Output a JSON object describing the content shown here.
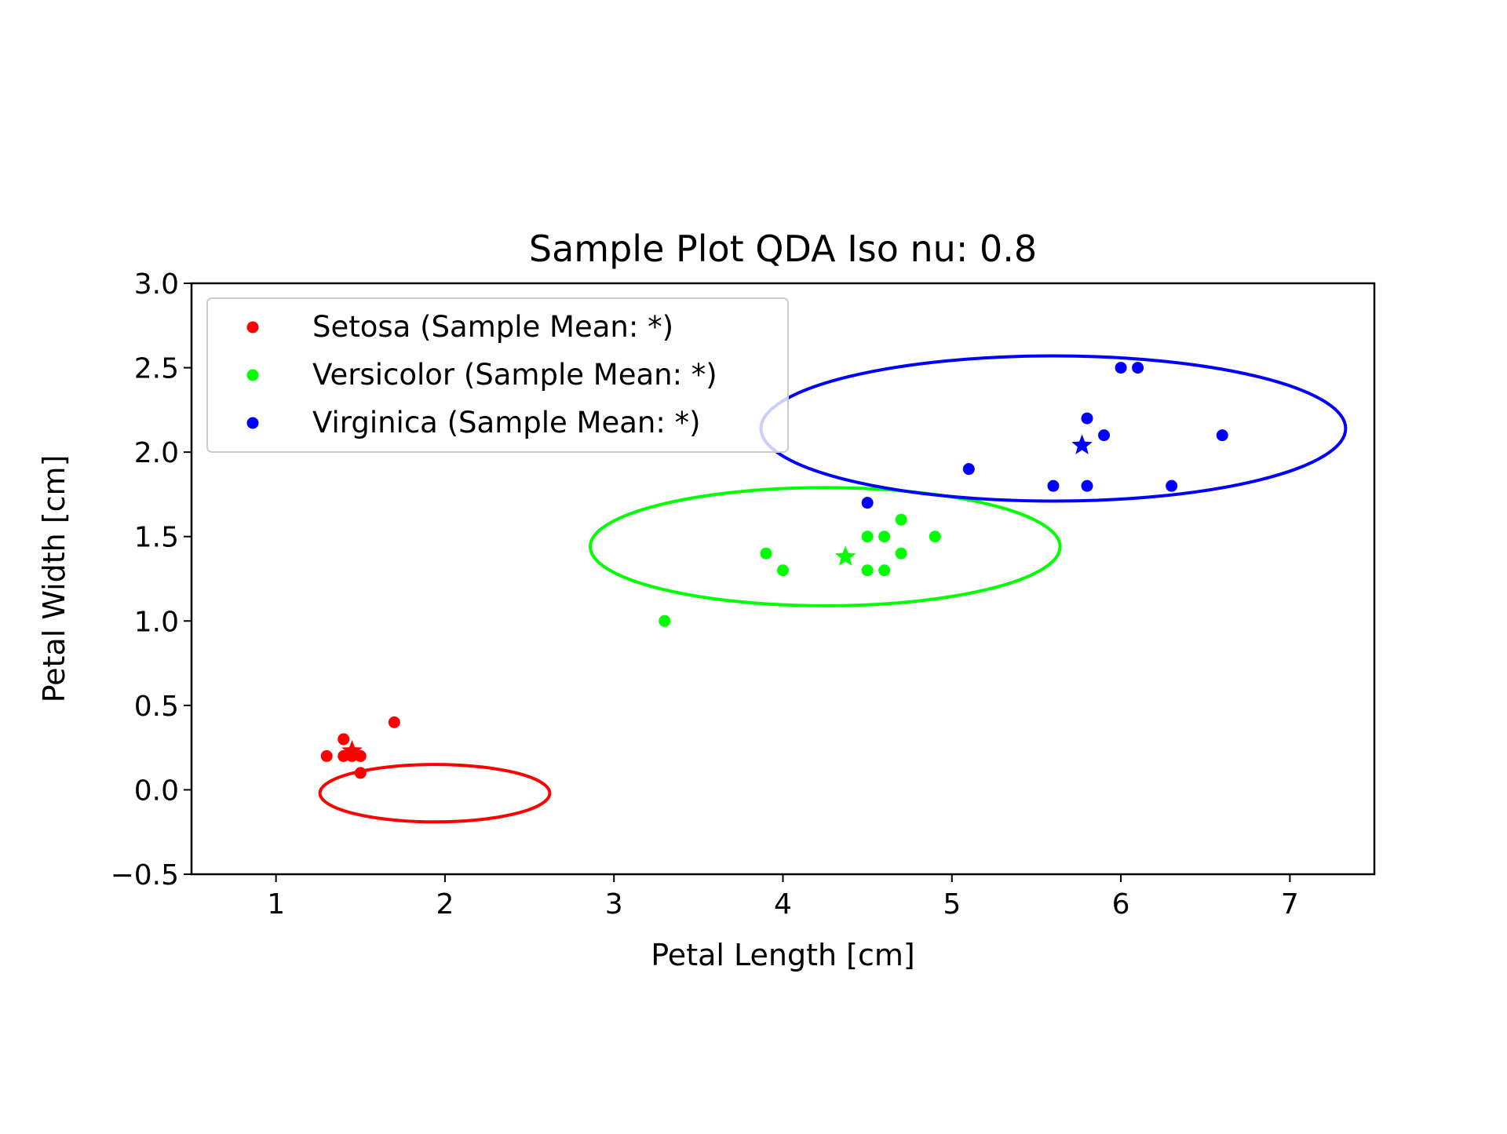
{
  "chart_data": {
    "type": "scatter",
    "title": "Sample Plot QDA Iso nu: 0.8",
    "xlabel": "Petal Length [cm]",
    "ylabel": "Petal Width [cm]",
    "xlim": [
      0.5,
      7.5
    ],
    "ylim": [
      -0.5,
      3.0
    ],
    "xticks": [
      1,
      2,
      3,
      4,
      5,
      6,
      7
    ],
    "xtick_labels": [
      "1",
      "2",
      "3",
      "4",
      "5",
      "6",
      "7"
    ],
    "yticks": [
      -0.5,
      0.0,
      0.5,
      1.0,
      1.5,
      2.0,
      2.5,
      3.0
    ],
    "ytick_labels": [
      "−0.5",
      "0.0",
      "0.5",
      "1.0",
      "1.5",
      "2.0",
      "2.5",
      "3.0"
    ],
    "grid": false,
    "legend_position": "upper-left",
    "series": [
      {
        "name": "Setosa (Sample Mean: *)",
        "color": "#ff0000",
        "points": [
          [
            1.3,
            0.2
          ],
          [
            1.4,
            0.3
          ],
          [
            1.4,
            0.2
          ],
          [
            1.45,
            0.2
          ],
          [
            1.5,
            0.2
          ],
          [
            1.5,
            0.1
          ],
          [
            1.7,
            0.4
          ]
        ],
        "mean": [
          1.45,
          0.23
        ],
        "ellipse": {
          "center": [
            1.94,
            -0.02
          ],
          "semi_axis_x": 0.68,
          "semi_axis_y": 0.17
        }
      },
      {
        "name": "Versicolor (Sample Mean: *)",
        "color": "#00ff00",
        "points": [
          [
            3.3,
            1.0
          ],
          [
            3.9,
            1.4
          ],
          [
            4.0,
            1.3
          ],
          [
            4.5,
            1.5
          ],
          [
            4.5,
            1.3
          ],
          [
            4.6,
            1.5
          ],
          [
            4.6,
            1.3
          ],
          [
            4.7,
            1.6
          ],
          [
            4.7,
            1.4
          ],
          [
            4.9,
            1.5
          ]
        ],
        "mean": [
          4.37,
          1.38
        ],
        "ellipse": {
          "center": [
            4.25,
            1.44
          ],
          "semi_axis_x": 1.39,
          "semi_axis_y": 0.35
        }
      },
      {
        "name": "Virginica (Sample Mean: *)",
        "color": "#0000ff",
        "points": [
          [
            4.5,
            1.7
          ],
          [
            5.1,
            1.9
          ],
          [
            5.6,
            1.8
          ],
          [
            5.8,
            1.8
          ],
          [
            5.8,
            2.2
          ],
          [
            5.9,
            2.1
          ],
          [
            6.0,
            2.5
          ],
          [
            6.1,
            2.5
          ],
          [
            6.3,
            1.8
          ],
          [
            6.6,
            2.1
          ]
        ],
        "mean": [
          5.77,
          2.04
        ],
        "ellipse": {
          "center": [
            5.6,
            2.14
          ],
          "semi_axis_x": 1.73,
          "semi_axis_y": 0.43
        }
      }
    ]
  }
}
